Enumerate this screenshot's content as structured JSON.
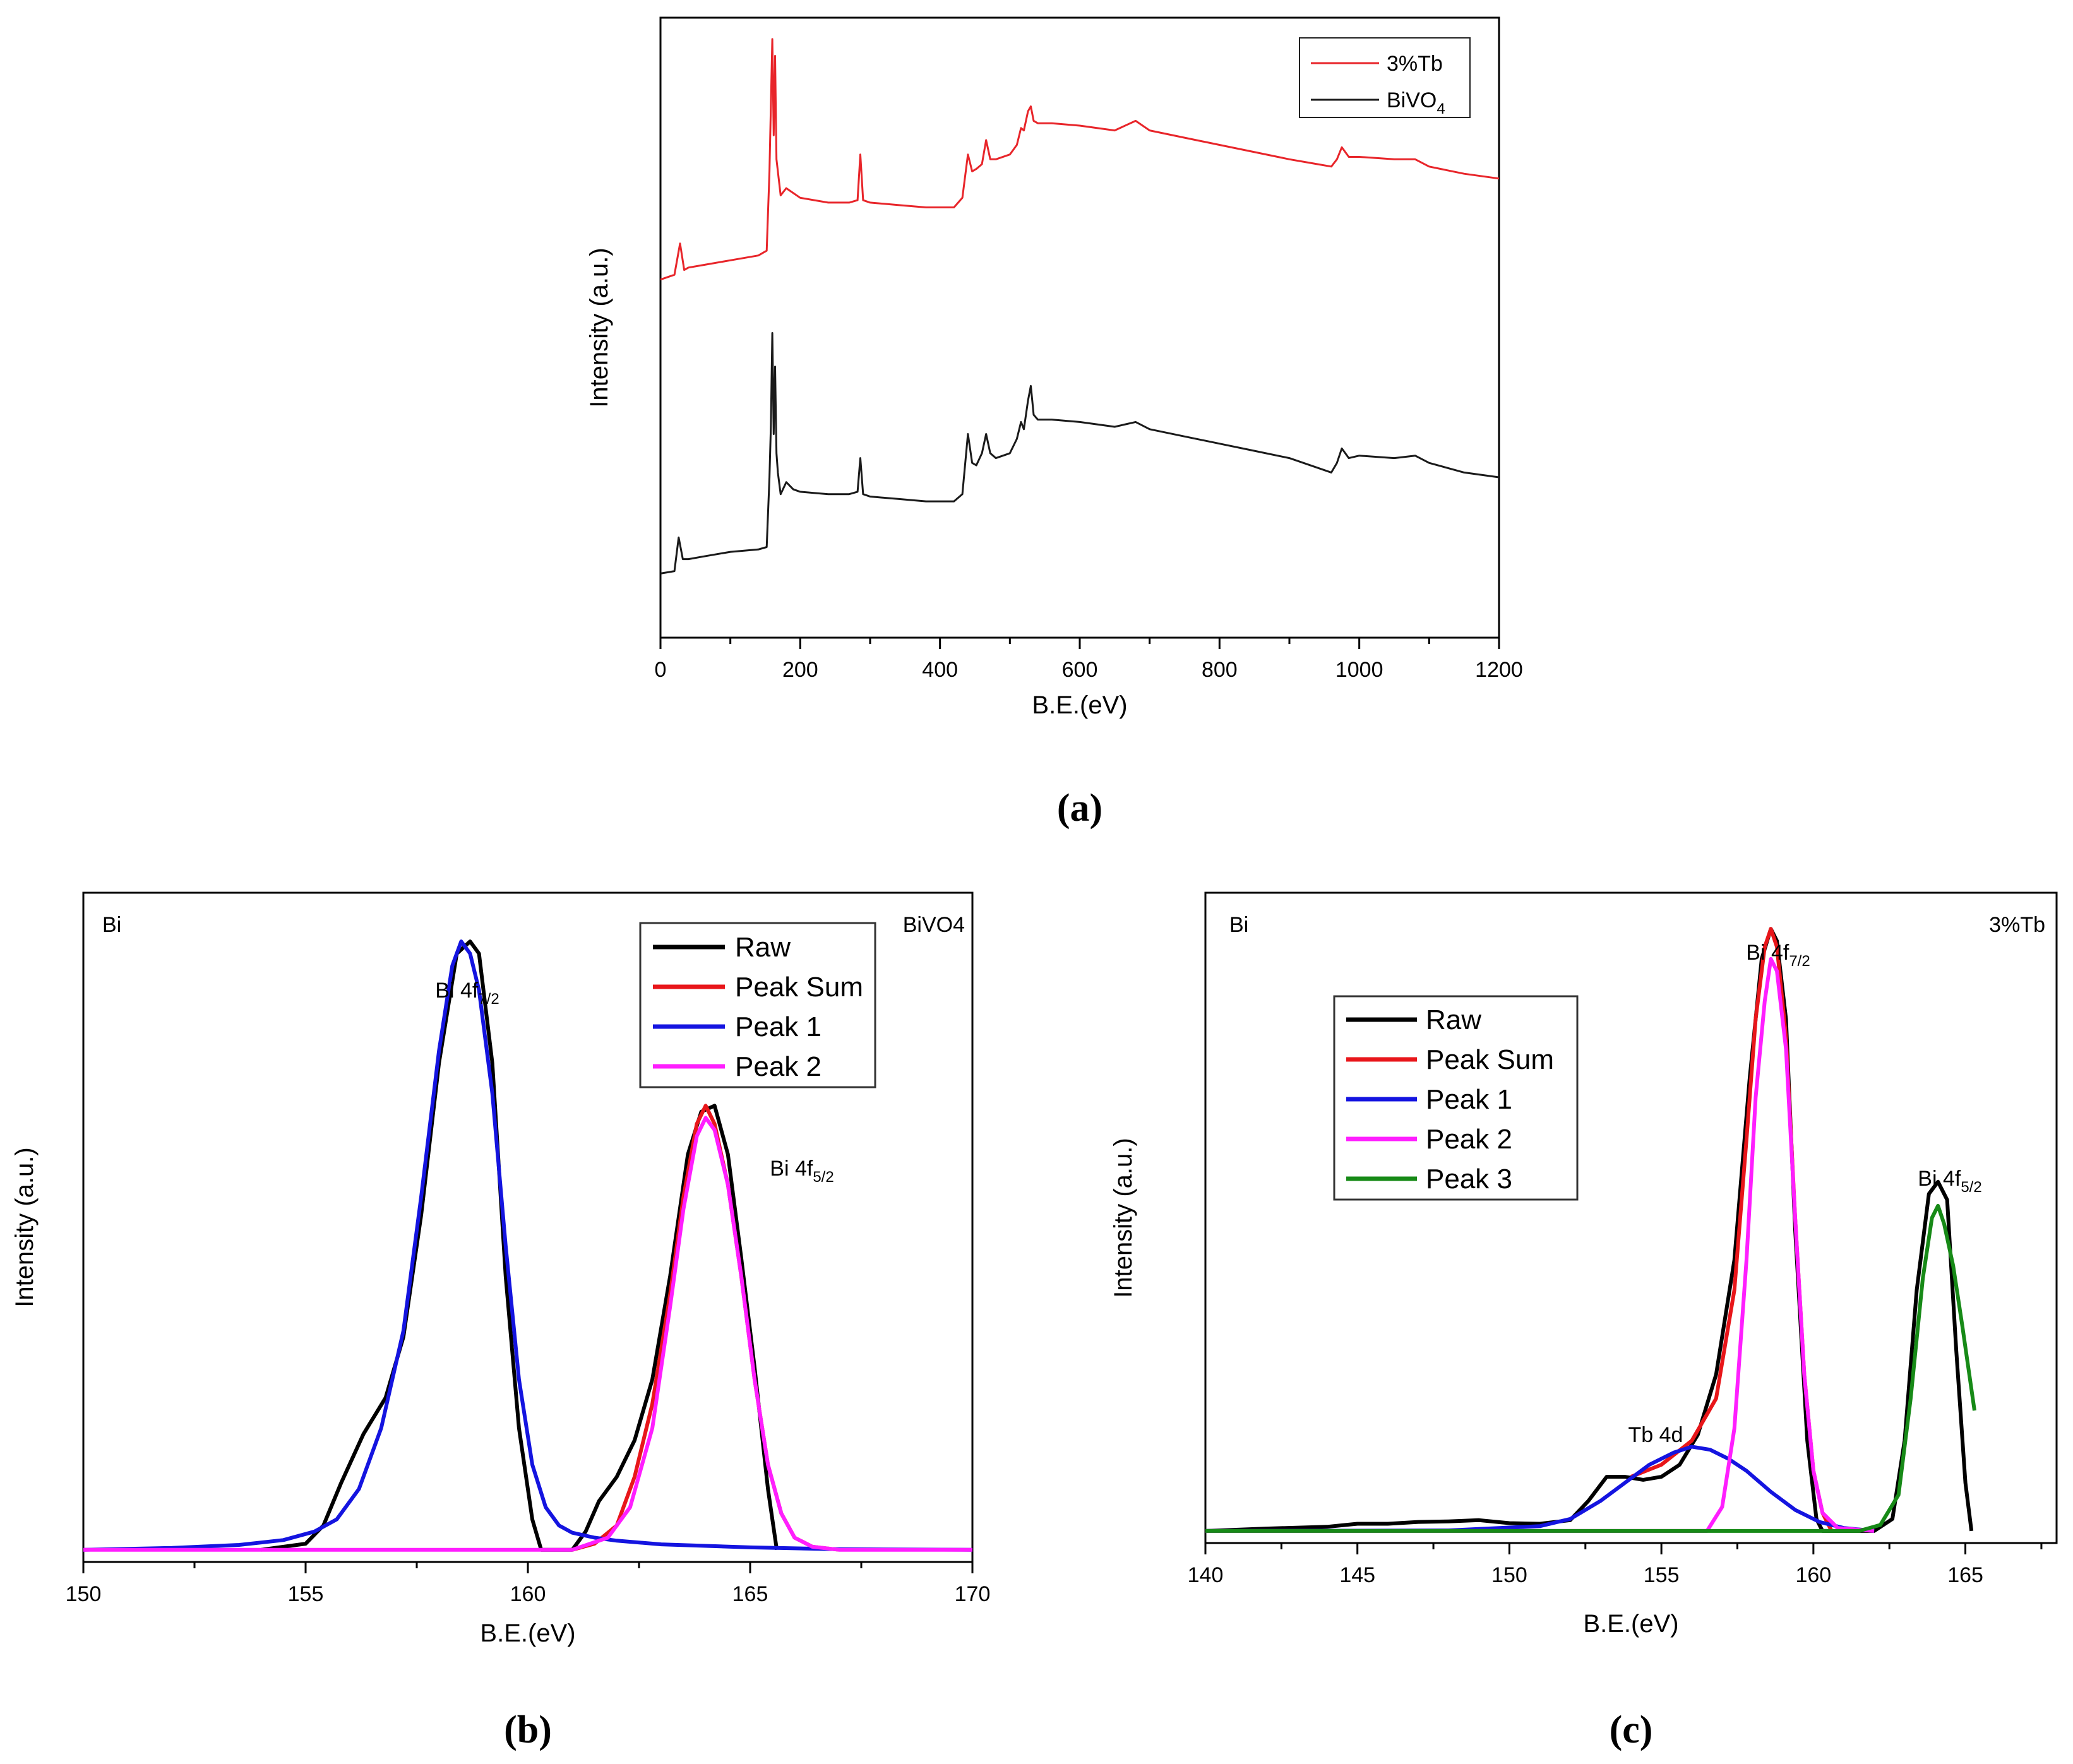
{
  "chart_data": [
    {
      "panel": "a",
      "type": "line",
      "panel_label": "(a)",
      "xlabel": "B.E.(eV)",
      "ylabel": "Intensity (a.u.)",
      "xlim": [
        0,
        1200
      ],
      "xticks": [
        "0",
        "200",
        "400",
        "600",
        "800",
        "1000",
        "1200"
      ],
      "legend": [
        "3%Tb",
        "BiVO4"
      ],
      "series": [
        {
          "name": "3%Tb",
          "color": "#e8252a",
          "x": [
            0,
            20,
            28,
            34,
            40,
            60,
            100,
            140,
            152,
            156,
            160,
            162,
            164,
            166,
            168,
            172,
            180,
            190,
            200,
            240,
            270,
            282,
            286,
            290,
            300,
            340,
            380,
            420,
            432,
            440,
            446,
            452,
            460,
            466,
            472,
            480,
            500,
            510,
            516,
            520,
            526,
            530,
            534,
            540,
            560,
            600,
            650,
            680,
            700,
            750,
            800,
            850,
            900,
            940,
            960,
            968,
            975,
            985,
            1000,
            1050,
            1080,
            1100,
            1150,
            1200
          ],
          "y": [
            0.0,
            0.02,
            0.15,
            0.04,
            0.05,
            0.06,
            0.08,
            0.1,
            0.12,
            0.45,
            1.0,
            0.6,
            0.93,
            0.5,
            0.45,
            0.35,
            0.38,
            0.36,
            0.34,
            0.32,
            0.32,
            0.33,
            0.52,
            0.33,
            0.32,
            0.31,
            0.3,
            0.3,
            0.34,
            0.52,
            0.45,
            0.46,
            0.48,
            0.58,
            0.5,
            0.5,
            0.52,
            0.56,
            0.63,
            0.62,
            0.7,
            0.72,
            0.66,
            0.65,
            0.65,
            0.64,
            0.62,
            0.66,
            0.62,
            0.59,
            0.56,
            0.53,
            0.5,
            0.48,
            0.47,
            0.5,
            0.55,
            0.51,
            0.51,
            0.5,
            0.5,
            0.47,
            0.44,
            0.42
          ]
        },
        {
          "name": "BiVO4",
          "color": "#1a1a1a",
          "x": [
            0,
            20,
            26,
            32,
            40,
            60,
            100,
            140,
            152,
            156,
            158,
            160,
            162,
            164,
            166,
            168,
            172,
            180,
            190,
            200,
            240,
            270,
            282,
            286,
            290,
            300,
            340,
            380,
            420,
            432,
            440,
            446,
            452,
            460,
            466,
            472,
            480,
            500,
            510,
            516,
            520,
            526,
            530,
            534,
            540,
            560,
            600,
            650,
            680,
            700,
            750,
            800,
            850,
            900,
            940,
            960,
            968,
            975,
            985,
            1000,
            1050,
            1080,
            1100,
            1150,
            1200
          ],
          "y": [
            0.0,
            0.01,
            0.15,
            0.06,
            0.06,
            0.07,
            0.09,
            0.1,
            0.11,
            0.4,
            0.62,
            1.0,
            0.58,
            0.86,
            0.5,
            0.42,
            0.33,
            0.38,
            0.35,
            0.34,
            0.33,
            0.33,
            0.34,
            0.48,
            0.33,
            0.32,
            0.31,
            0.3,
            0.3,
            0.33,
            0.58,
            0.46,
            0.45,
            0.5,
            0.58,
            0.5,
            0.48,
            0.5,
            0.56,
            0.63,
            0.6,
            0.72,
            0.78,
            0.66,
            0.64,
            0.64,
            0.63,
            0.61,
            0.63,
            0.6,
            0.57,
            0.54,
            0.51,
            0.48,
            0.44,
            0.42,
            0.46,
            0.52,
            0.48,
            0.49,
            0.48,
            0.49,
            0.46,
            0.42,
            0.4
          ]
        }
      ]
    },
    {
      "panel": "b",
      "type": "line",
      "panel_label": "(b)",
      "xlabel": "B.E.(eV)",
      "ylabel": "Intensity (a.u.)",
      "xlim": [
        150,
        170
      ],
      "xticks": [
        "150",
        "155",
        "160",
        "165",
        "170"
      ],
      "corner_label": "Bi",
      "sample_label": "BiVO4",
      "annotations": [
        {
          "base": "Bi 4f",
          "sub": "7/2",
          "x": 158.6
        },
        {
          "base": "Bi 4f",
          "sub": "5/2",
          "x": 165.9
        }
      ],
      "legend": [
        "Raw",
        "Peak Sum",
        "Peak 1",
        "Peak 2"
      ],
      "series": [
        {
          "name": "Raw",
          "color": "#000000",
          "x": [
            154.0,
            155.0,
            155.4,
            155.8,
            156.3,
            156.8,
            157.2,
            157.6,
            158.0,
            158.4,
            158.7,
            158.9,
            159.2,
            159.5,
            159.8,
            160.1,
            160.3,
            160.5,
            161.0,
            161.3,
            161.6,
            162.0,
            162.4,
            162.8,
            163.2,
            163.6,
            163.9,
            164.2,
            164.5,
            164.8,
            165.1,
            165.4,
            165.6
          ],
          "y": [
            0.0,
            0.01,
            0.04,
            0.11,
            0.19,
            0.25,
            0.35,
            0.55,
            0.8,
            0.98,
            1.0,
            0.98,
            0.8,
            0.45,
            0.2,
            0.05,
            0.0,
            0.0,
            0.0,
            0.03,
            0.08,
            0.12,
            0.18,
            0.28,
            0.45,
            0.65,
            0.72,
            0.73,
            0.65,
            0.48,
            0.3,
            0.1,
            0.0
          ]
        },
        {
          "name": "Peak Sum",
          "color": "#e8161a",
          "x": [
            161.0,
            161.5,
            162.0,
            162.4,
            162.8,
            163.2,
            163.5,
            163.8,
            164.0,
            164.2,
            164.5,
            164.8,
            165.1,
            165.4,
            165.7,
            166.0,
            166.4,
            167.0
          ],
          "y": [
            0.0,
            0.01,
            0.04,
            0.12,
            0.24,
            0.42,
            0.58,
            0.7,
            0.73,
            0.7,
            0.6,
            0.45,
            0.28,
            0.14,
            0.06,
            0.02,
            0.005,
            0.0
          ]
        },
        {
          "name": "Peak 1",
          "color": "#1414e0",
          "x": [
            150.0,
            152.0,
            153.5,
            154.5,
            155.2,
            155.7,
            156.2,
            156.7,
            157.2,
            157.6,
            158.0,
            158.3,
            158.5,
            158.7,
            158.9,
            159.2,
            159.5,
            159.8,
            160.1,
            160.4,
            160.7,
            161.0,
            161.5,
            162.0,
            163.0,
            165.0,
            167.0,
            170.0
          ],
          "y": [
            0.0,
            0.003,
            0.008,
            0.016,
            0.03,
            0.05,
            0.1,
            0.2,
            0.36,
            0.58,
            0.82,
            0.96,
            1.0,
            0.98,
            0.92,
            0.75,
            0.5,
            0.28,
            0.14,
            0.07,
            0.04,
            0.028,
            0.02,
            0.015,
            0.009,
            0.004,
            0.001,
            0.0
          ]
        },
        {
          "name": "Peak 2",
          "color": "#ff1eff",
          "x": [
            150.0,
            161.0,
            161.8,
            162.3,
            162.8,
            163.2,
            163.5,
            163.8,
            164.0,
            164.2,
            164.5,
            164.8,
            165.1,
            165.4,
            165.7,
            166.0,
            166.4,
            167.0,
            170.0
          ],
          "y": [
            0.0,
            0.0,
            0.02,
            0.07,
            0.2,
            0.4,
            0.56,
            0.68,
            0.71,
            0.69,
            0.6,
            0.45,
            0.28,
            0.14,
            0.06,
            0.02,
            0.005,
            0.0,
            0.0
          ]
        }
      ]
    },
    {
      "panel": "c",
      "type": "line",
      "panel_label": "(c)",
      "xlabel": "B.E.(eV)",
      "ylabel": "Intensity (a.u.)",
      "xlim": [
        140,
        168
      ],
      "xticks": [
        "140",
        "145",
        "150",
        "155",
        "160",
        "165"
      ],
      "corner_label": "Bi",
      "sample_label": "3%Tb",
      "annotations": [
        {
          "base": "Bi 4f",
          "sub": "7/2",
          "x": 158.8
        },
        {
          "base": "Bi 4f",
          "sub": "5/2",
          "x": 164.5
        },
        {
          "base": "Tb 4d",
          "sub": "",
          "x": 154.5
        }
      ],
      "legend": [
        "Raw",
        "Peak Sum",
        "Peak 1",
        "Peak 2",
        "Peak 3"
      ],
      "series": [
        {
          "name": "Raw",
          "color": "#000000",
          "x": [
            140,
            142,
            144,
            145,
            146,
            147,
            148,
            149,
            150,
            151,
            152,
            152.6,
            153.2,
            153.8,
            154.4,
            155.0,
            155.6,
            156.2,
            156.8,
            157.4,
            157.9,
            158.3,
            158.6,
            158.8,
            159.1,
            159.4,
            159.8,
            160.1,
            160.3,
            161.0,
            162.0,
            162.6,
            163.0,
            163.4,
            163.8,
            164.1,
            164.4,
            164.7,
            165.0,
            165.2
          ],
          "y": [
            0.0,
            0.004,
            0.007,
            0.012,
            0.012,
            0.015,
            0.016,
            0.018,
            0.013,
            0.012,
            0.018,
            0.05,
            0.09,
            0.09,
            0.085,
            0.09,
            0.11,
            0.16,
            0.26,
            0.45,
            0.75,
            0.95,
            1.0,
            0.98,
            0.85,
            0.5,
            0.15,
            0.02,
            0.0,
            0.0,
            0.0,
            0.02,
            0.15,
            0.4,
            0.56,
            0.58,
            0.55,
            0.3,
            0.08,
            0.0
          ]
        },
        {
          "name": "Peak Sum",
          "color": "#e8161a",
          "x": [
            154.0,
            155.0,
            156.0,
            156.8,
            157.4,
            157.8,
            158.1,
            158.4,
            158.6,
            158.8,
            159.1,
            159.4,
            159.7,
            160.0,
            160.3,
            160.6
          ],
          "y": [
            0.09,
            0.11,
            0.15,
            0.22,
            0.4,
            0.65,
            0.85,
            0.97,
            1.0,
            0.97,
            0.82,
            0.52,
            0.26,
            0.1,
            0.03,
            0.0
          ]
        },
        {
          "name": "Peak 1",
          "color": "#1414e0",
          "x": [
            140,
            148,
            151,
            152,
            153,
            153.8,
            154.6,
            155.4,
            156.0,
            156.6,
            157.2,
            157.8,
            158.6,
            159.4,
            160.2,
            161.0,
            162.0
          ],
          "y": [
            0.0,
            0.001,
            0.008,
            0.02,
            0.05,
            0.08,
            0.11,
            0.13,
            0.14,
            0.135,
            0.12,
            0.1,
            0.065,
            0.035,
            0.015,
            0.005,
            0.0
          ]
        },
        {
          "name": "Peak 2",
          "color": "#ff1eff",
          "x": [
            140,
            156.5,
            157.0,
            157.4,
            157.8,
            158.1,
            158.4,
            158.6,
            158.8,
            159.1,
            159.4,
            159.7,
            160.0,
            160.3,
            160.8,
            162.0
          ],
          "y": [
            0.0,
            0.0,
            0.04,
            0.17,
            0.45,
            0.72,
            0.88,
            0.95,
            0.93,
            0.8,
            0.52,
            0.26,
            0.1,
            0.03,
            0.005,
            0.0
          ]
        },
        {
          "name": "Peak 3",
          "color": "#178a17",
          "x": [
            140,
            161.5,
            162.2,
            162.8,
            163.2,
            163.6,
            163.9,
            164.1,
            164.3,
            164.6,
            164.9,
            165.3
          ],
          "y": [
            0.0,
            0.0,
            0.01,
            0.06,
            0.22,
            0.42,
            0.52,
            0.54,
            0.51,
            0.44,
            0.34,
            0.2
          ]
        }
      ]
    }
  ]
}
